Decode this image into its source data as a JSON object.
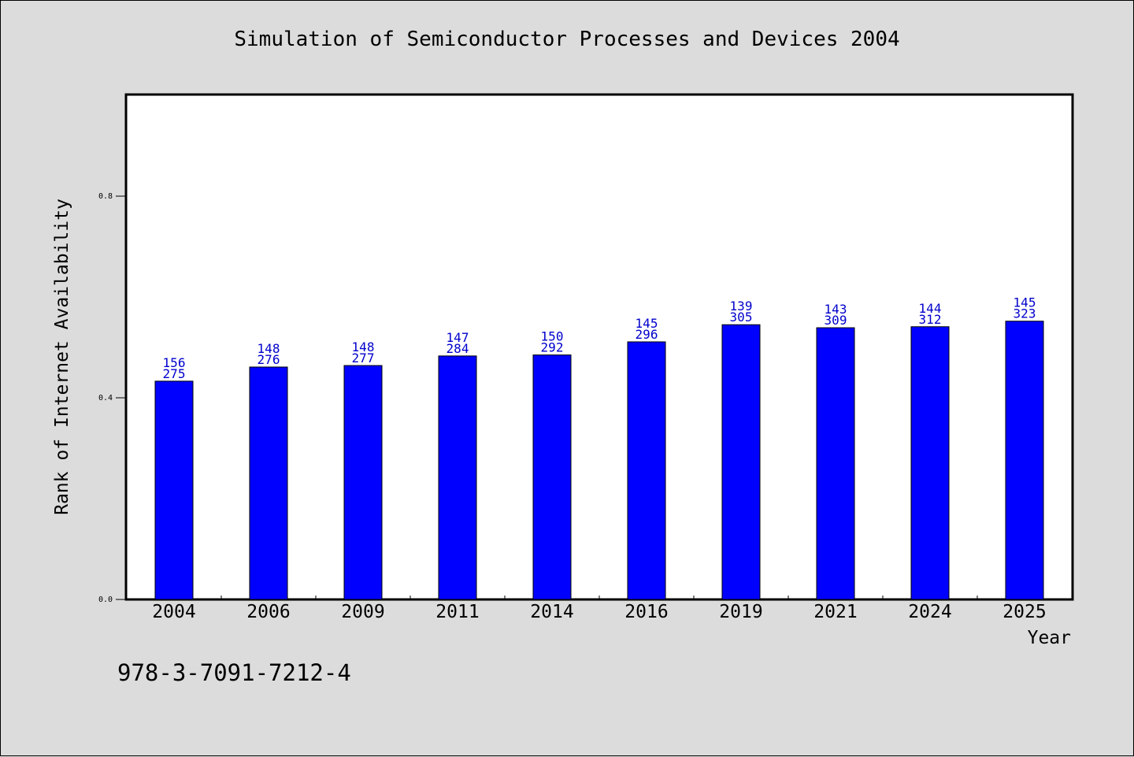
{
  "footer_text": "978-3-7091-7212-4",
  "chart_data": {
    "type": "bar",
    "title": "Simulation of Semiconductor Processes and Devices 2004",
    "xlabel": "Year",
    "ylabel": "Rank of Internet Availability",
    "ylim": [
      0,
      1.0
    ],
    "yticks": [
      "0.0",
      "0.4",
      "0.8"
    ],
    "grid": false,
    "bar_color": "#0000ff",
    "label_color": "#0000cc",
    "categories": [
      "2004",
      "2006",
      "2009",
      "2011",
      "2014",
      "2016",
      "2019",
      "2021",
      "2024",
      "2025"
    ],
    "values": [
      0.433,
      0.461,
      0.464,
      0.483,
      0.485,
      0.511,
      0.545,
      0.539,
      0.541,
      0.552
    ],
    "data_labels_top": [
      "156",
      "148",
      "148",
      "147",
      "150",
      "145",
      "139",
      "143",
      "144",
      "145"
    ],
    "data_labels_bottom": [
      "275",
      "276",
      "277",
      "284",
      "292",
      "296",
      "305",
      "309",
      "312",
      "323"
    ]
  }
}
